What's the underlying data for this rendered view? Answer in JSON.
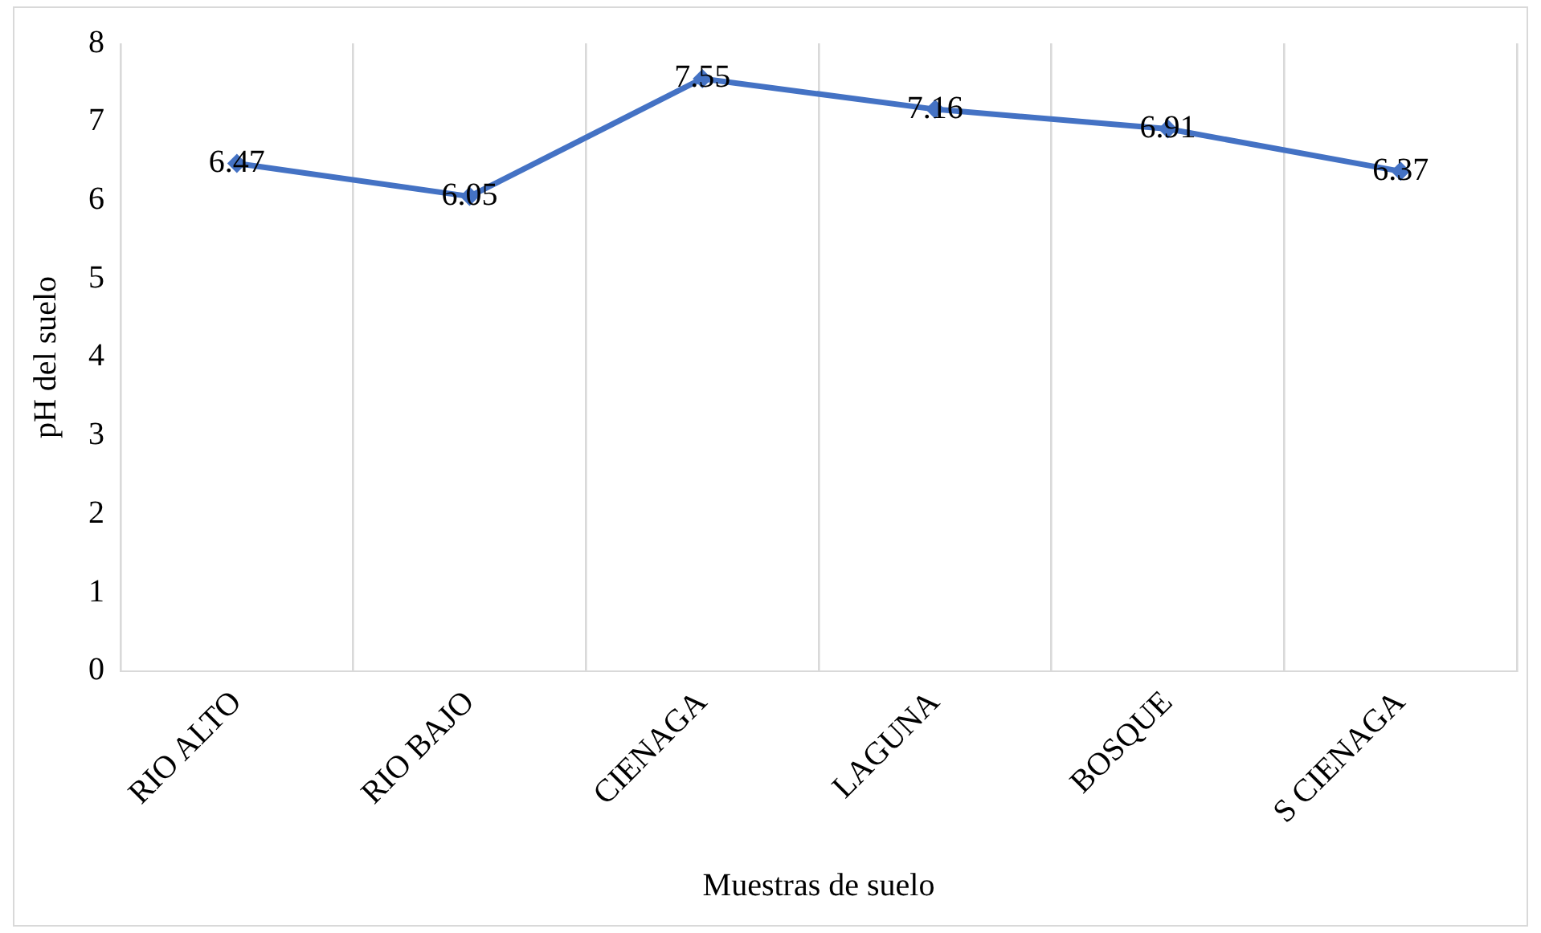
{
  "chart_data": {
    "type": "line",
    "xlabel": "Muestras de suelo",
    "ylabel": "pH del suelo",
    "categories": [
      "RIO ALTO",
      "RIO BAJO",
      "CIENAGA",
      "LAGUNA",
      "BOSQUE",
      "S CIENAGA"
    ],
    "series": [
      {
        "color": "#4472c4",
        "values": [
          6.47,
          6.05,
          7.55,
          7.16,
          6.91,
          6.37
        ]
      }
    ],
    "ylim": [
      0,
      8
    ],
    "yticks": [
      0,
      1,
      2,
      3,
      4,
      5,
      6,
      7,
      8
    ],
    "grid": "x",
    "legend": false,
    "marker": "diamond",
    "line_style": "solid",
    "data_labels": true
  }
}
